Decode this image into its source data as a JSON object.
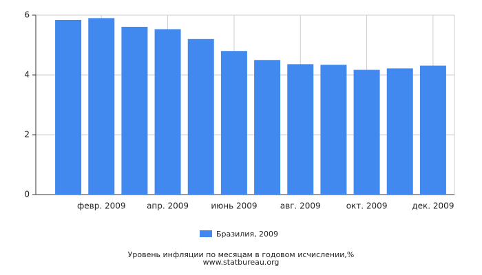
{
  "chart_data": {
    "type": "bar",
    "title": "Уровень инфляции по месяцам в годовом исчислении,%",
    "source": "www.statbureau.org",
    "categories": [
      null,
      "февр. 2009",
      null,
      "апр. 2009",
      null,
      "июнь 2009",
      null,
      "авг. 2009",
      null,
      "окт. 2009",
      null,
      "дек. 2009"
    ],
    "series": [
      {
        "name": "Бразилия, 2009",
        "color": "#4189ee",
        "values": [
          5.84,
          5.9,
          5.61,
          5.53,
          5.2,
          4.8,
          4.5,
          4.36,
          4.34,
          4.17,
          4.22,
          4.31
        ]
      }
    ],
    "ylim": [
      0,
      6
    ],
    "yticks": [
      0,
      2,
      4,
      6
    ],
    "grid": true
  }
}
